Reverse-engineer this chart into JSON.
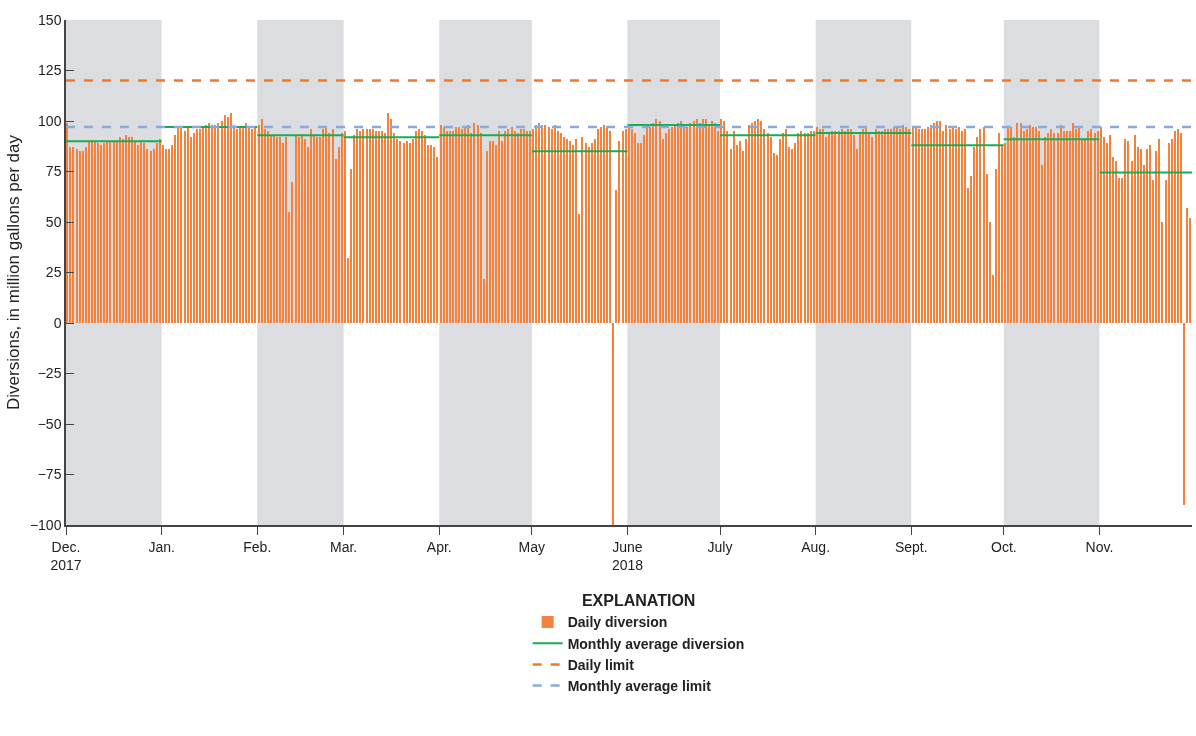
{
  "chart_data": {
    "type": "bar",
    "ylabel": "Diversions, in million gallons per day",
    "legend_title": "EXPLANATION",
    "legend": "bottom",
    "grid": false,
    "xlim": [
      "2017-12-01",
      "2018-12-01"
    ],
    "xticks": [
      {
        "value": "2017-12-01",
        "label": "Dec.\n2017"
      },
      {
        "value": "2018-01-01",
        "label": "Jan."
      },
      {
        "value": "2018-02-01",
        "label": "Feb."
      },
      {
        "value": "2018-03-01",
        "label": "Mar."
      },
      {
        "value": "2018-04-01",
        "label": "Apr."
      },
      {
        "value": "2018-05-01",
        "label": "May"
      },
      {
        "value": "2018-06-01",
        "label": "June\n2018"
      },
      {
        "value": "2018-07-01",
        "label": "July"
      },
      {
        "value": "2018-08-01",
        "label": "Aug."
      },
      {
        "value": "2018-09-01",
        "label": "Sept."
      },
      {
        "value": "2018-10-01",
        "label": "Oct."
      },
      {
        "value": "2018-11-01",
        "label": "Nov."
      }
    ],
    "ylim": [
      -100,
      150
    ],
    "yticks": [
      {
        "value": -100,
        "label": "−100"
      },
      {
        "value": -75,
        "label": "−75"
      },
      {
        "value": -50,
        "label": "−50"
      },
      {
        "value": -25,
        "label": "−25"
      },
      0,
      25,
      50,
      75,
      100,
      125,
      150
    ],
    "bands": [
      {
        "axis": "x",
        "from": "2017-12-01",
        "to": "2018-01-01",
        "label": null,
        "color": "#dcdde0"
      },
      {
        "axis": "x",
        "from": "2018-02-01",
        "to": "2018-03-01",
        "label": null,
        "color": "#dcdde0"
      },
      {
        "axis": "x",
        "from": "2018-04-01",
        "to": "2018-05-01",
        "label": null,
        "color": "#dcdde0"
      },
      {
        "axis": "x",
        "from": "2018-06-01",
        "to": "2018-07-01",
        "label": null,
        "color": "#dcdde0"
      },
      {
        "axis": "x",
        "from": "2018-08-01",
        "to": "2018-09-01",
        "label": null,
        "color": "#dcdde0"
      },
      {
        "axis": "x",
        "from": "2018-10-01",
        "to": "2018-11-01",
        "label": null,
        "color": "#dcdde0"
      }
    ],
    "ref_lines": [
      {
        "axis": "y",
        "value": 120,
        "label": "Daily limit",
        "color": "#f07a2a",
        "line_style": "dashed"
      },
      {
        "axis": "y",
        "value": 97,
        "label": "Monthly average limit",
        "color": "#88aadc",
        "line_style": "dashed"
      }
    ],
    "series": [
      {
        "name": "Daily diversion",
        "color": "#f4823a",
        "x": [
          "2017-12-01",
          "2017-12-02",
          "2017-12-03",
          "2017-12-04",
          "2017-12-05",
          "2017-12-06",
          "2017-12-07",
          "2017-12-08",
          "2017-12-09",
          "2017-12-10",
          "2017-12-11",
          "2017-12-12",
          "2017-12-13",
          "2017-12-14",
          "2017-12-15",
          "2017-12-16",
          "2017-12-17",
          "2017-12-18",
          "2017-12-19",
          "2017-12-20",
          "2017-12-21",
          "2017-12-22",
          "2017-12-23",
          "2017-12-24",
          "2017-12-25",
          "2017-12-26",
          "2017-12-27",
          "2017-12-28",
          "2017-12-29",
          "2017-12-30",
          "2017-12-31",
          "2018-01-01",
          "2018-01-02",
          "2018-01-03",
          "2018-01-04",
          "2018-01-05",
          "2018-01-06",
          "2018-01-07",
          "2018-01-08",
          "2018-01-09",
          "2018-01-10",
          "2018-01-11",
          "2018-01-12",
          "2018-01-13",
          "2018-01-14",
          "2018-01-15",
          "2018-01-16",
          "2018-01-17",
          "2018-01-18",
          "2018-01-19",
          "2018-01-20",
          "2018-01-21",
          "2018-01-22",
          "2018-01-23",
          "2018-01-24",
          "2018-01-25",
          "2018-01-26",
          "2018-01-27",
          "2018-01-28",
          "2018-01-29",
          "2018-01-30",
          "2018-01-31",
          "2018-02-01",
          "2018-02-02",
          "2018-02-03",
          "2018-02-04",
          "2018-02-05",
          "2018-02-06",
          "2018-02-07",
          "2018-02-08",
          "2018-02-09",
          "2018-02-10",
          "2018-02-11",
          "2018-02-12",
          "2018-02-13",
          "2018-02-14",
          "2018-02-15",
          "2018-02-16",
          "2018-02-17",
          "2018-02-18",
          "2018-02-19",
          "2018-02-20",
          "2018-02-21",
          "2018-02-22",
          "2018-02-23",
          "2018-02-24",
          "2018-02-25",
          "2018-02-26",
          "2018-02-27",
          "2018-02-28",
          "2018-03-01",
          "2018-03-02",
          "2018-03-03",
          "2018-03-04",
          "2018-03-05",
          "2018-03-06",
          "2018-03-07",
          "2018-03-08",
          "2018-03-09",
          "2018-03-10",
          "2018-03-11",
          "2018-03-12",
          "2018-03-13",
          "2018-03-14",
          "2018-03-15",
          "2018-03-16",
          "2018-03-17",
          "2018-03-18",
          "2018-03-19",
          "2018-03-20",
          "2018-03-21",
          "2018-03-22",
          "2018-03-23",
          "2018-03-24",
          "2018-03-25",
          "2018-03-26",
          "2018-03-27",
          "2018-03-28",
          "2018-03-29",
          "2018-03-30",
          "2018-03-31",
          "2018-04-01",
          "2018-04-02",
          "2018-04-03",
          "2018-04-04",
          "2018-04-05",
          "2018-04-06",
          "2018-04-07",
          "2018-04-08",
          "2018-04-09",
          "2018-04-10",
          "2018-04-11",
          "2018-04-12",
          "2018-04-13",
          "2018-04-14",
          "2018-04-15",
          "2018-04-16",
          "2018-04-17",
          "2018-04-18",
          "2018-04-19",
          "2018-04-20",
          "2018-04-21",
          "2018-04-22",
          "2018-04-23",
          "2018-04-24",
          "2018-04-25",
          "2018-04-26",
          "2018-04-27",
          "2018-04-28",
          "2018-04-29",
          "2018-04-30",
          "2018-05-01",
          "2018-05-02",
          "2018-05-03",
          "2018-05-04",
          "2018-05-05",
          "2018-05-06",
          "2018-05-07",
          "2018-05-08",
          "2018-05-09",
          "2018-05-10",
          "2018-05-11",
          "2018-05-12",
          "2018-05-13",
          "2018-05-14",
          "2018-05-15",
          "2018-05-16",
          "2018-05-17",
          "2018-05-18",
          "2018-05-19",
          "2018-05-20",
          "2018-05-21",
          "2018-05-22",
          "2018-05-23",
          "2018-05-24",
          "2018-05-25",
          "2018-05-26",
          "2018-05-27",
          "2018-05-28",
          "2018-05-29",
          "2018-05-30",
          "2018-05-31",
          "2018-06-01",
          "2018-06-02",
          "2018-06-03",
          "2018-06-04",
          "2018-06-05",
          "2018-06-06",
          "2018-06-07",
          "2018-06-08",
          "2018-06-09",
          "2018-06-10",
          "2018-06-11",
          "2018-06-12",
          "2018-06-13",
          "2018-06-14",
          "2018-06-15",
          "2018-06-16",
          "2018-06-17",
          "2018-06-18",
          "2018-06-19",
          "2018-06-20",
          "2018-06-21",
          "2018-06-22",
          "2018-06-23",
          "2018-06-24",
          "2018-06-25",
          "2018-06-26",
          "2018-06-27",
          "2018-06-28",
          "2018-06-29",
          "2018-06-30",
          "2018-07-01",
          "2018-07-02",
          "2018-07-03",
          "2018-07-04",
          "2018-07-05",
          "2018-07-06",
          "2018-07-07",
          "2018-07-08",
          "2018-07-09",
          "2018-07-10",
          "2018-07-11",
          "2018-07-12",
          "2018-07-13",
          "2018-07-14",
          "2018-07-15",
          "2018-07-16",
          "2018-07-17",
          "2018-07-18",
          "2018-07-19",
          "2018-07-20",
          "2018-07-21",
          "2018-07-22",
          "2018-07-23",
          "2018-07-24",
          "2018-07-25",
          "2018-07-26",
          "2018-07-27",
          "2018-07-28",
          "2018-07-29",
          "2018-07-30",
          "2018-07-31",
          "2018-08-01",
          "2018-08-02",
          "2018-08-03",
          "2018-08-04",
          "2018-08-05",
          "2018-08-06",
          "2018-08-07",
          "2018-08-08",
          "2018-08-09",
          "2018-08-10",
          "2018-08-11",
          "2018-08-12",
          "2018-08-13",
          "2018-08-14",
          "2018-08-15",
          "2018-08-16",
          "2018-08-17",
          "2018-08-18",
          "2018-08-19",
          "2018-08-20",
          "2018-08-21",
          "2018-08-22",
          "2018-08-23",
          "2018-08-24",
          "2018-08-25",
          "2018-08-26",
          "2018-08-27",
          "2018-08-28",
          "2018-08-29",
          "2018-08-30",
          "2018-08-31",
          "2018-09-01",
          "2018-09-02",
          "2018-09-03",
          "2018-09-04",
          "2018-09-05",
          "2018-09-06",
          "2018-09-07",
          "2018-09-08",
          "2018-09-09",
          "2018-09-10",
          "2018-09-11",
          "2018-09-12",
          "2018-09-13",
          "2018-09-14",
          "2018-09-15",
          "2018-09-16",
          "2018-09-17",
          "2018-09-18",
          "2018-09-19",
          "2018-09-20",
          "2018-09-21",
          "2018-09-22",
          "2018-09-23",
          "2018-09-24",
          "2018-09-25",
          "2018-09-26",
          "2018-09-27",
          "2018-09-28",
          "2018-09-29",
          "2018-09-30",
          "2018-10-01",
          "2018-10-02",
          "2018-10-03",
          "2018-10-04",
          "2018-10-05",
          "2018-10-06",
          "2018-10-07",
          "2018-10-08",
          "2018-10-09",
          "2018-10-10",
          "2018-10-11",
          "2018-10-12",
          "2018-10-13",
          "2018-10-14",
          "2018-10-15",
          "2018-10-16",
          "2018-10-17",
          "2018-10-18",
          "2018-10-19",
          "2018-10-20",
          "2018-10-21",
          "2018-10-22",
          "2018-10-23",
          "2018-10-24",
          "2018-10-25",
          "2018-10-26",
          "2018-10-27",
          "2018-10-28",
          "2018-10-29",
          "2018-10-30",
          "2018-10-31",
          "2018-11-01",
          "2018-11-02",
          "2018-11-03",
          "2018-11-04",
          "2018-11-05",
          "2018-11-06",
          "2018-11-07",
          "2018-11-08",
          "2018-11-09",
          "2018-11-10",
          "2018-11-11",
          "2018-11-12",
          "2018-11-13",
          "2018-11-14",
          "2018-11-15",
          "2018-11-16",
          "2018-11-17",
          "2018-11-18",
          "2018-11-19",
          "2018-11-20",
          "2018-11-21",
          "2018-11-22",
          "2018-11-23",
          "2018-11-24",
          "2018-11-25",
          "2018-11-26",
          "2018-11-27",
          "2018-11-28",
          "2018-11-29",
          "2018-11-30"
        ],
        "values": [
          99,
          87,
          87,
          86,
          85,
          85,
          87,
          90,
          90,
          90,
          89,
          88,
          89,
          90,
          90,
          90,
          90,
          92,
          91,
          93,
          92,
          92,
          90,
          88,
          90,
          89,
          86,
          85,
          86,
          89,
          91,
          88,
          86,
          86,
          88,
          93,
          97,
          97,
          95,
          97,
          92,
          94,
          96,
          96,
          97,
          98,
          99,
          98,
          98,
          99,
          100,
          103,
          102,
          104,
          98,
          96,
          97,
          97,
          99,
          97,
          96,
          97,
          98,
          101,
          96,
          95,
          93,
          93,
          92,
          92,
          89,
          92,
          55,
          70,
          93,
          92,
          93,
          91,
          87,
          96,
          93,
          92,
          92,
          96,
          97,
          94,
          96,
          81,
          87,
          94,
          95,
          32,
          76,
          93,
          96,
          95,
          96,
          96,
          96,
          96,
          95,
          95,
          95,
          94,
          104,
          101,
          94,
          91,
          90,
          89,
          90,
          89,
          91,
          95,
          96,
          95,
          93,
          88,
          88,
          87,
          82,
          98,
          97,
          95,
          95,
          95,
          97,
          97,
          96,
          97,
          98,
          94,
          99,
          98,
          94,
          22,
          85,
          90,
          90,
          88,
          95,
          90,
          95,
          96,
          97,
          95,
          94,
          96,
          96,
          95,
          95,
          96,
          98,
          99,
          98,
          98,
          97,
          96,
          98,
          95,
          94,
          92,
          91,
          90,
          88,
          91,
          54,
          92,
          89,
          87,
          89,
          91,
          96,
          97,
          98,
          97,
          95,
          -100,
          66,
          90,
          95,
          96,
          97,
          96,
          94,
          89,
          89,
          93,
          97,
          98,
          99,
          101,
          100,
          91,
          94,
          96,
          97,
          98,
          99,
          100,
          98,
          97,
          99,
          100,
          101,
          99,
          101,
          101,
          98,
          100,
          99,
          95,
          101,
          100,
          95,
          86,
          95,
          88,
          90,
          85,
          91,
          98,
          99,
          100,
          101,
          100,
          96,
          94,
          92,
          84,
          83,
          91,
          94,
          96,
          87,
          86,
          89,
          94,
          95,
          94,
          94,
          95,
          95,
          97,
          96,
          96,
          92,
          94,
          95,
          95,
          95,
          96,
          95,
          96,
          96,
          93,
          86,
          94,
          96,
          97,
          94,
          92,
          96,
          95,
          95,
          96,
          96,
          96,
          97,
          97,
          96,
          98,
          97,
          96,
          97,
          97,
          96,
          96,
          96,
          97,
          98,
          99,
          100,
          100,
          95,
          98,
          96,
          97,
          96,
          97,
          95,
          96,
          67,
          73,
          87,
          92,
          96,
          97,
          74,
          50,
          24,
          76,
          94,
          88,
          89,
          97,
          97,
          92,
          99,
          99,
          95,
          96,
          98,
          97,
          97,
          95,
          78,
          92,
          94,
          96,
          94,
          94,
          98,
          95,
          95,
          95,
          99,
          96,
          97,
          91,
          91,
          95,
          96,
          94,
          95,
          97,
          92,
          89,
          93,
          82,
          80,
          72,
          72,
          91,
          90,
          80,
          93,
          87,
          86,
          78,
          86,
          88,
          71,
          85,
          91,
          50,
          71,
          89,
          91,
          95,
          96,
          94,
          -90,
          57,
          52
        ]
      },
      {
        "name": "Monthly average diversion",
        "type": "line",
        "color": "#1aab55",
        "line_style": "solid",
        "marker": "none",
        "x": [
          "2017-12-01",
          "2018-01-01"
        ],
        "values": [
          90,
          90
        ]
      },
      {
        "type": "line",
        "color": "#1aab55",
        "x": [
          "2018-01-01",
          "2018-02-01"
        ],
        "values": [
          97,
          97
        ]
      },
      {
        "type": "line",
        "color": "#1aab55",
        "x": [
          "2018-02-01",
          "2018-03-01"
        ],
        "values": [
          93,
          93
        ]
      },
      {
        "type": "line",
        "color": "#1aab55",
        "x": [
          "2018-03-01",
          "2018-04-01"
        ],
        "values": [
          92,
          92
        ]
      },
      {
        "type": "line",
        "color": "#1aab55",
        "x": [
          "2018-04-01",
          "2018-05-01"
        ],
        "values": [
          93,
          93
        ]
      },
      {
        "type": "line",
        "color": "#1aab55",
        "x": [
          "2018-05-01",
          "2018-06-01"
        ],
        "values": [
          85,
          85
        ]
      },
      {
        "type": "line",
        "color": "#1aab55",
        "x": [
          "2018-06-01",
          "2018-07-01"
        ],
        "values": [
          98,
          98
        ]
      },
      {
        "type": "line",
        "color": "#1aab55",
        "x": [
          "2018-07-01",
          "2018-08-01"
        ],
        "values": [
          93,
          93
        ]
      },
      {
        "type": "line",
        "color": "#1aab55",
        "x": [
          "2018-08-01",
          "2018-09-01"
        ],
        "values": [
          94,
          94
        ]
      },
      {
        "type": "line",
        "color": "#1aab55",
        "x": [
          "2018-09-01",
          "2018-10-01"
        ],
        "values": [
          88,
          88
        ]
      },
      {
        "type": "line",
        "color": "#1aab55",
        "x": [
          "2018-10-01",
          "2018-11-01"
        ],
        "values": [
          91,
          91
        ]
      },
      {
        "type": "line",
        "color": "#1aab55",
        "x": [
          "2018-11-01",
          "2018-12-01"
        ],
        "values": [
          74.5,
          74.5
        ]
      }
    ]
  }
}
